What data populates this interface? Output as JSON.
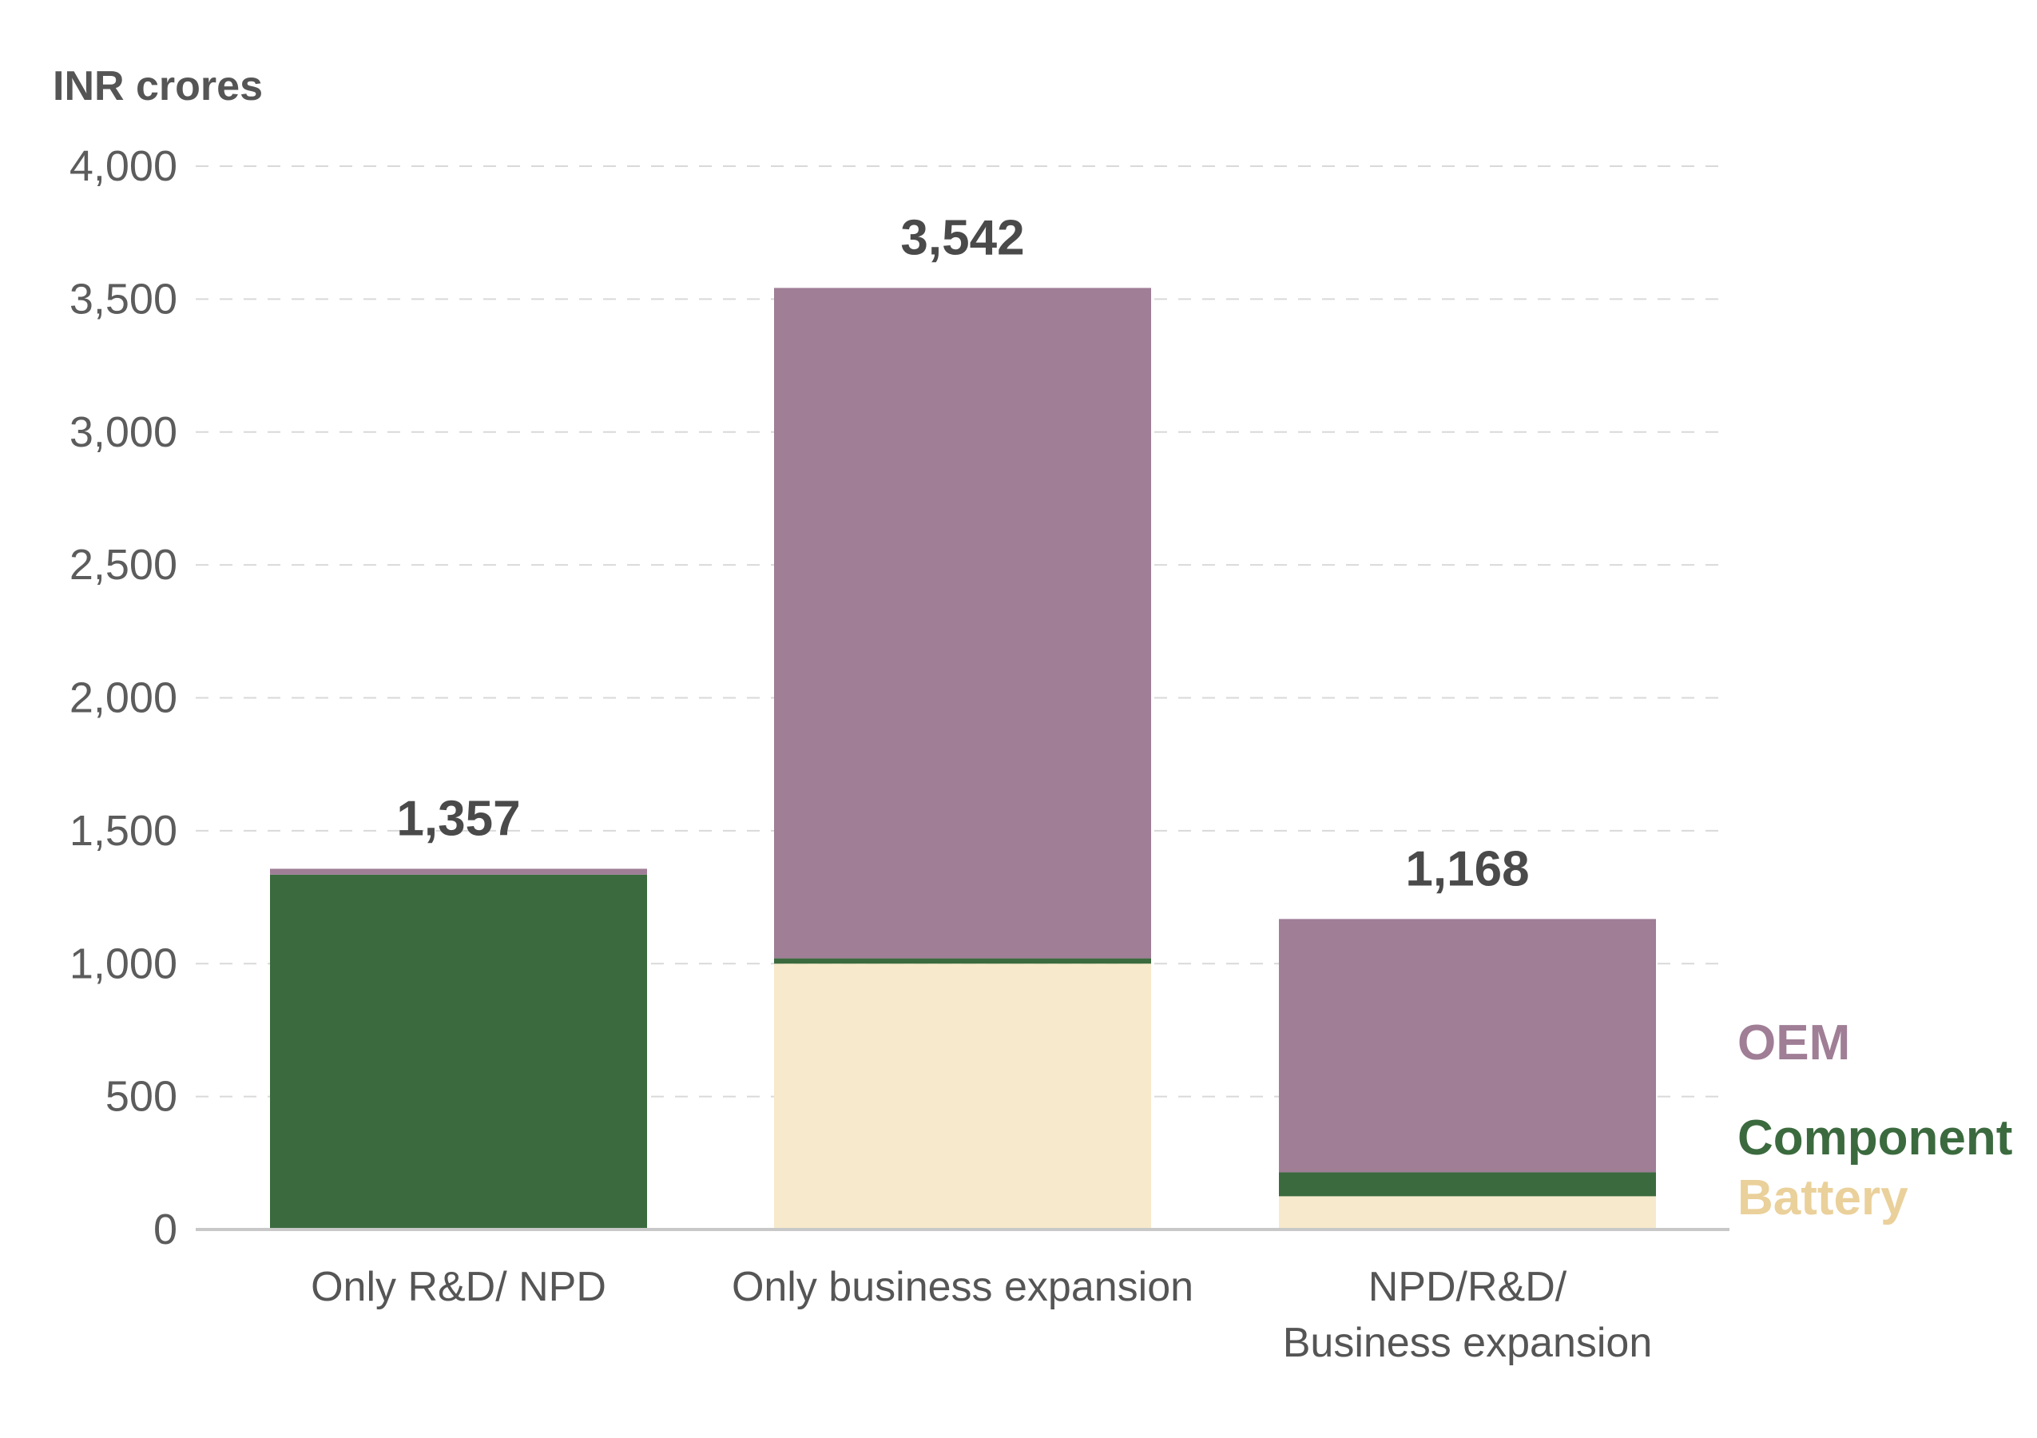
{
  "chart_data": {
    "type": "bar",
    "stacked": true,
    "ylabel": "INR crores",
    "ylim": [
      0,
      4000
    ],
    "yticks": [
      0,
      500,
      1000,
      1500,
      2000,
      2500,
      3000,
      3500,
      4000
    ],
    "ytick_labels": [
      "0",
      "500",
      "1,000",
      "1,500",
      "2,000",
      "2,500",
      "3,000",
      "3,500",
      "4,000"
    ],
    "categories": [
      [
        "Only R&D/ NPD"
      ],
      [
        "Only business expansion"
      ],
      [
        "NPD/R&D/",
        "Business expansion"
      ]
    ],
    "series": [
      {
        "name": "Battery",
        "color": "#f7e9cb",
        "label_color": "#ead09a",
        "values": [
          0,
          1000,
          125
        ]
      },
      {
        "name": "Component",
        "color": "#3b6a3e",
        "label_color": "#3b6a3e",
        "values": [
          1335,
          20,
          90
        ]
      },
      {
        "name": "OEM",
        "color": "#9f7e96",
        "label_color": "#9f7e96",
        "values": [
          22,
          2522,
          953
        ]
      }
    ],
    "totals": [
      1357,
      3542,
      1168
    ],
    "total_labels": [
      "1,357",
      "3,542",
      "1,168"
    ],
    "grid": true,
    "legend_position": "right"
  }
}
